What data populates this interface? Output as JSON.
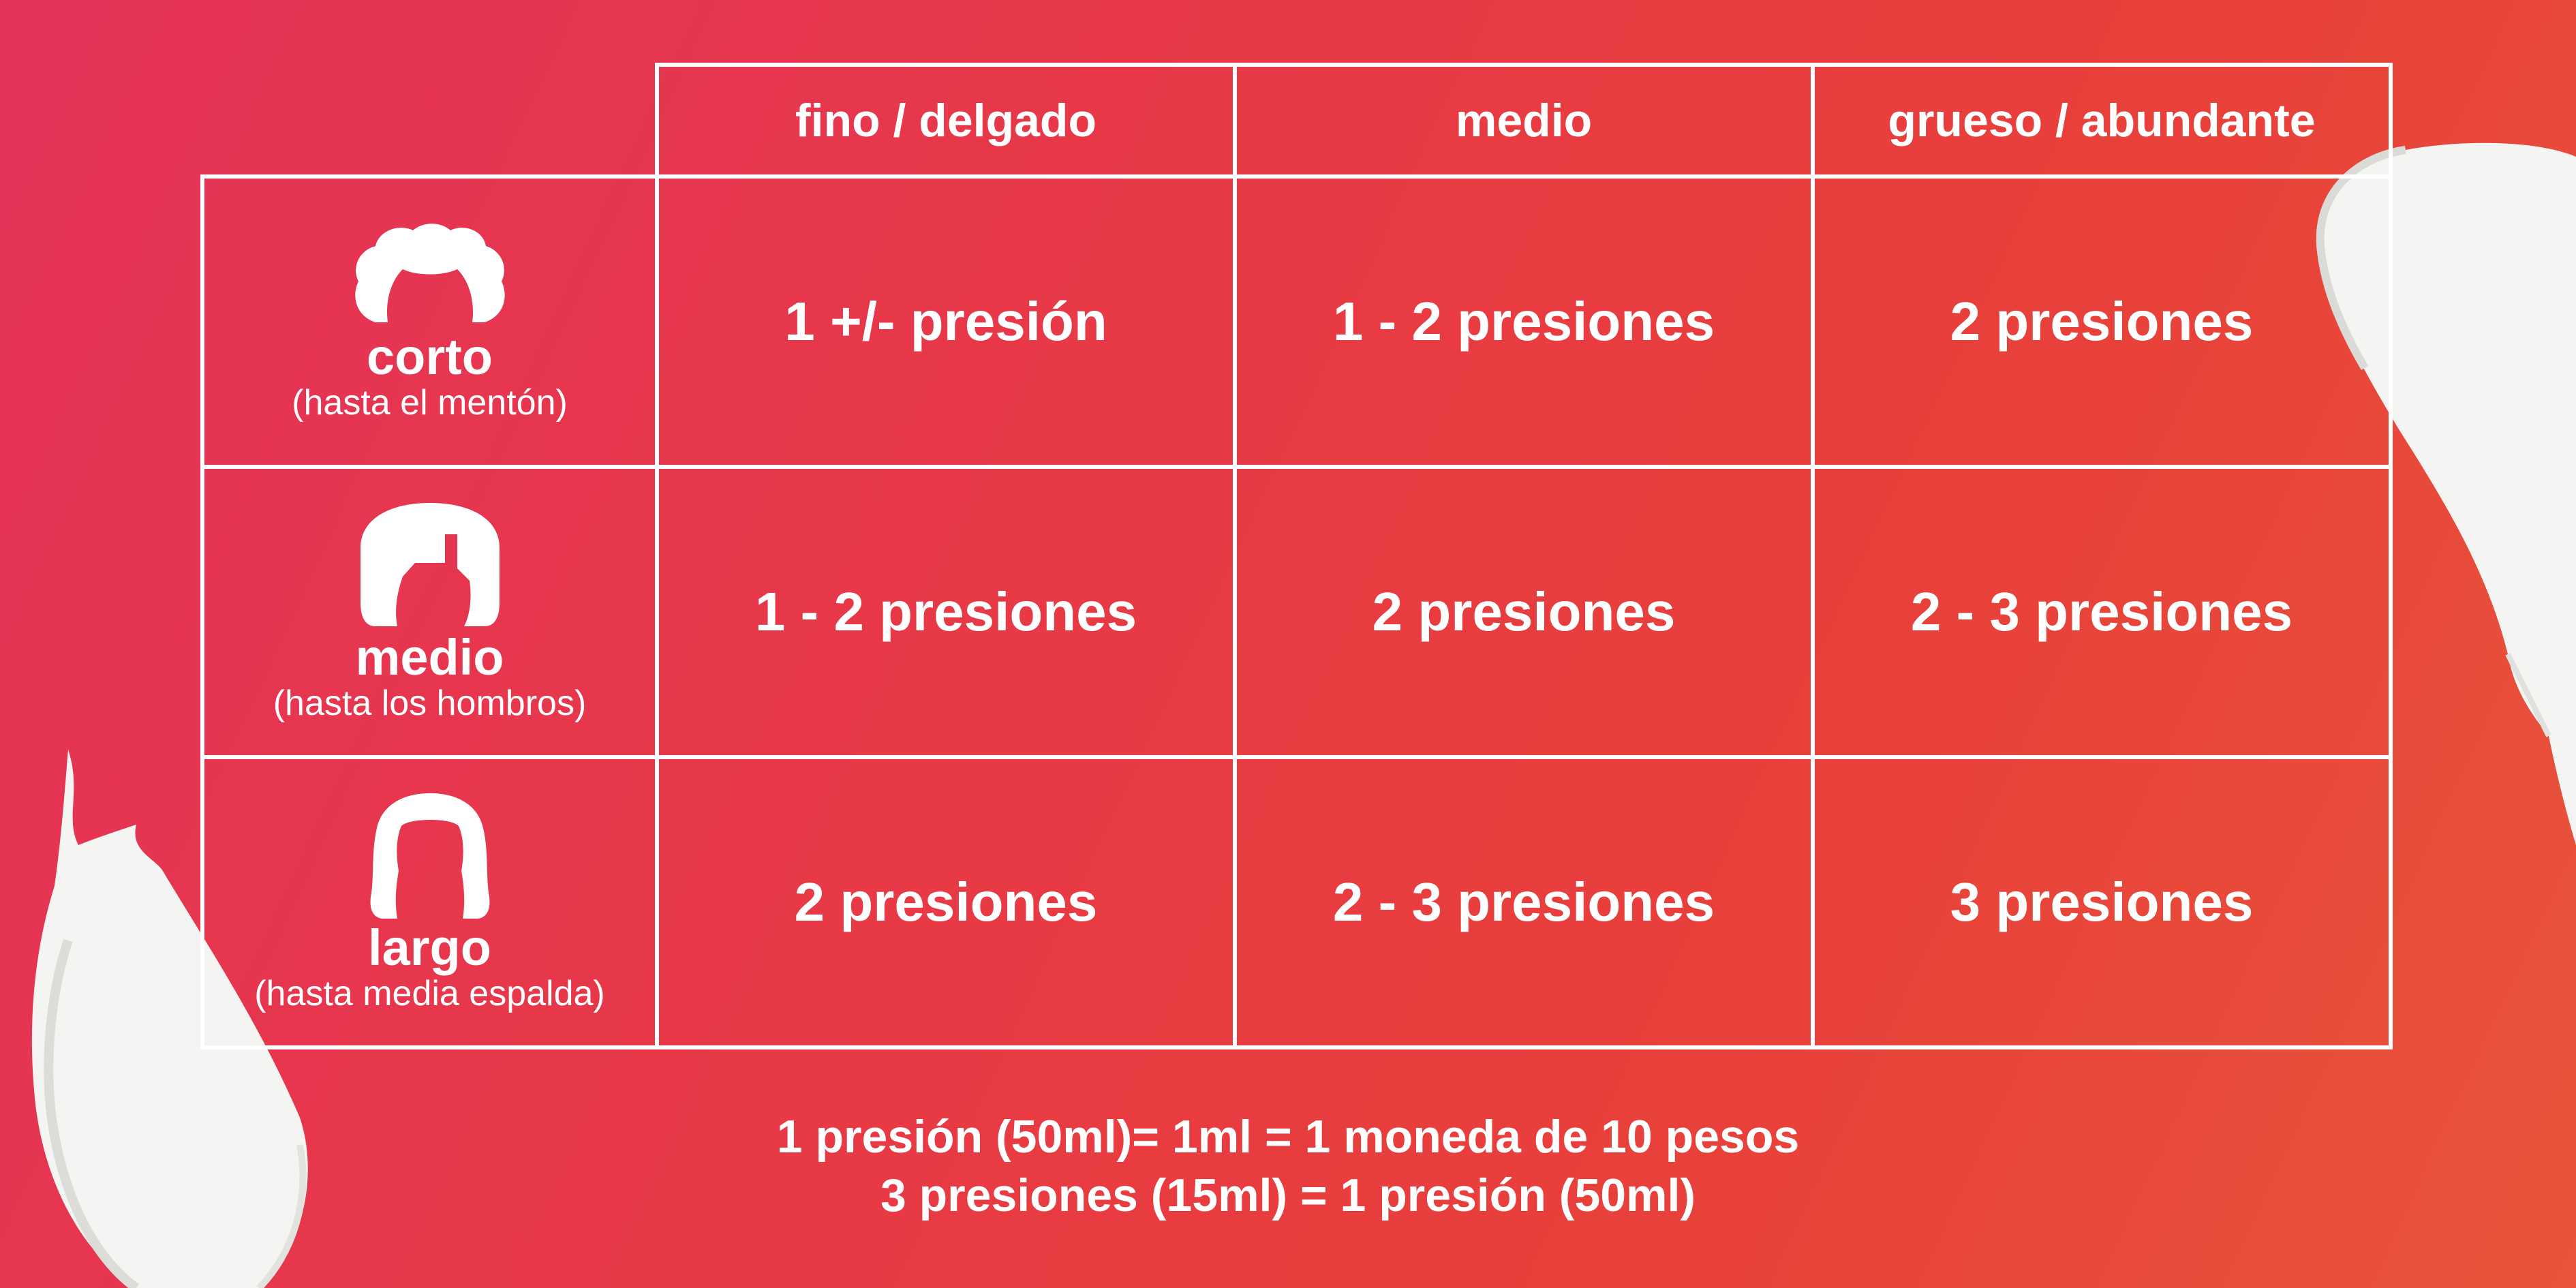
{
  "colors": {
    "background_start": "#e5325a",
    "background_end": "#e8553a",
    "lines_and_text": "#ffffff",
    "cream": "#f4f4f2"
  },
  "table": {
    "columns": [
      "fino / delgado",
      "medio",
      "grueso / abundante"
    ],
    "rows": [
      {
        "icon": "short-curly-hair-icon",
        "length": "corto",
        "detail": "(hasta el mentón)",
        "cells": [
          "1 +/- presión",
          "1 - 2 presiones",
          "2 presiones"
        ]
      },
      {
        "icon": "medium-hair-icon",
        "length": "medio",
        "detail": "(hasta los hombros)",
        "cells": [
          "1 - 2 presiones",
          "2 presiones",
          "2 - 3 presiones"
        ]
      },
      {
        "icon": "long-hair-icon",
        "length": "largo",
        "detail": "(hasta media espalda)",
        "cells": [
          "2 presiones",
          "2 - 3 presiones",
          "3 presiones"
        ]
      }
    ]
  },
  "footer": {
    "line1": "1 presión (50ml)= 1ml = 1 moneda de 10 pesos",
    "line2": "3 presiones (15ml) = 1 presión (50ml)"
  }
}
